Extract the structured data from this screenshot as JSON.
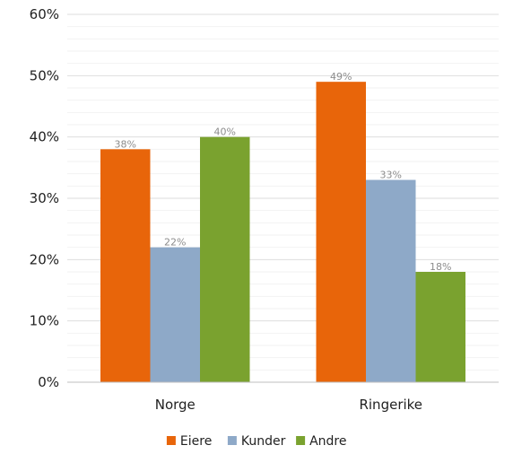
{
  "chart_data": {
    "type": "bar",
    "categories": [
      "Norge",
      "Ringerike"
    ],
    "series": [
      {
        "name": "Eiere",
        "values": [
          38,
          49
        ],
        "color": "#e8650a"
      },
      {
        "name": "Kunder",
        "values": [
          22,
          33
        ],
        "color": "#8ea9c8"
      },
      {
        "name": "Andre",
        "values": [
          40,
          18
        ],
        "color": "#7aa22f"
      }
    ],
    "data_labels": [
      [
        "38%",
        "49%"
      ],
      [
        "22%",
        "33%"
      ],
      [
        "40%",
        "18%"
      ]
    ],
    "y_ticks": [
      "0%",
      "10%",
      "20%",
      "30%",
      "40%",
      "50%",
      "60%"
    ],
    "ylim": [
      0,
      60
    ],
    "grid": true,
    "legend_position": "bottom"
  }
}
